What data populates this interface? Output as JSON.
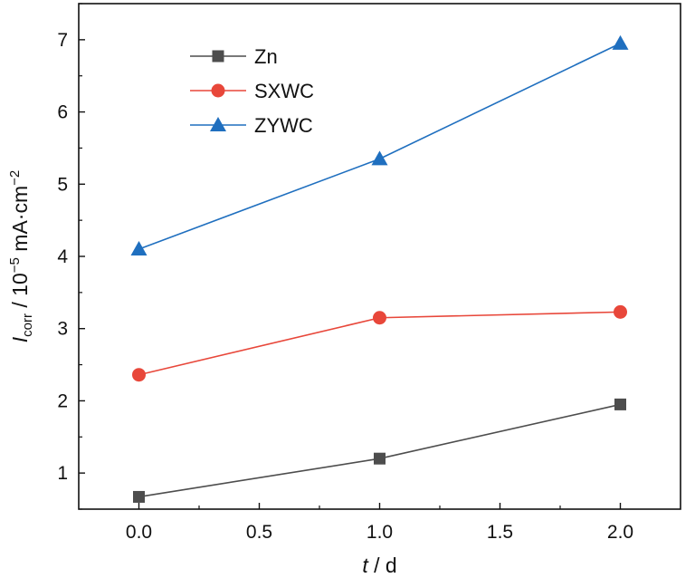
{
  "chart_data": {
    "type": "line",
    "x": [
      0.0,
      1.0,
      2.0
    ],
    "series": [
      {
        "name": "Zn",
        "values": [
          0.67,
          1.2,
          1.95
        ],
        "color": "#4d4d4d",
        "marker": "square"
      },
      {
        "name": "SXWC",
        "values": [
          2.36,
          3.15,
          3.23
        ],
        "color": "#e8473a",
        "marker": "circle"
      },
      {
        "name": "ZYWC",
        "values": [
          4.1,
          5.35,
          6.95
        ],
        "color": "#1f6fbf",
        "marker": "triangle"
      }
    ],
    "xlim": [
      -0.25,
      2.25
    ],
    "ylim": [
      0.5,
      7.5
    ],
    "xticks": [
      "0.0",
      "0.5",
      "1.0",
      "1.5",
      "2.0"
    ],
    "yticks": [
      "1",
      "2",
      "3",
      "4",
      "5",
      "6",
      "7"
    ],
    "xlabel": {
      "italic": "t",
      "rest": " / d"
    },
    "ylabel": {
      "italic": "I",
      "sub": "corr",
      "mid": " / 10",
      "sup1": "−5",
      "rest": " mA·cm",
      "sup2": "−2"
    },
    "grid": false,
    "legend_position": "top-left"
  }
}
